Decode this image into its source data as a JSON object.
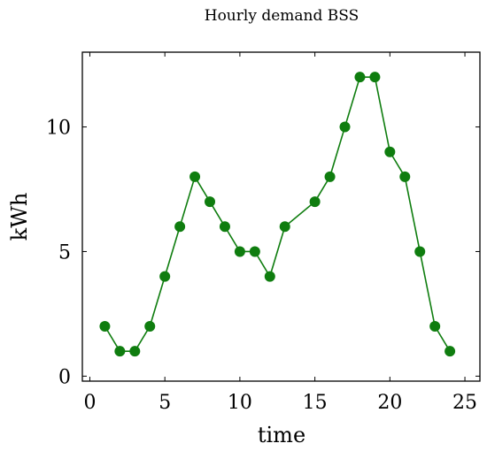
{
  "chart_data": {
    "type": "line",
    "title": "Hourly demand BSS",
    "xlabel": "time",
    "ylabel": "kWh",
    "xlim": [
      -0.5,
      26
    ],
    "ylim": [
      -0.2,
      13
    ],
    "xticks": [
      0,
      5,
      10,
      15,
      20,
      25
    ],
    "yticks": [
      0,
      5,
      10
    ],
    "grid": false,
    "series": [
      {
        "color": "#0f7d0f",
        "marker": "circle",
        "x": [
          1,
          2,
          3,
          4,
          5,
          6,
          7,
          8,
          9,
          10,
          11,
          12,
          13,
          15,
          16,
          17,
          18,
          19,
          20,
          21,
          22,
          23,
          24
        ],
        "y": [
          2,
          1,
          1,
          2,
          4,
          6,
          8,
          7,
          6,
          5,
          5,
          4,
          6,
          7,
          8,
          10,
          12,
          12,
          9,
          8,
          5,
          2,
          1
        ]
      }
    ]
  }
}
